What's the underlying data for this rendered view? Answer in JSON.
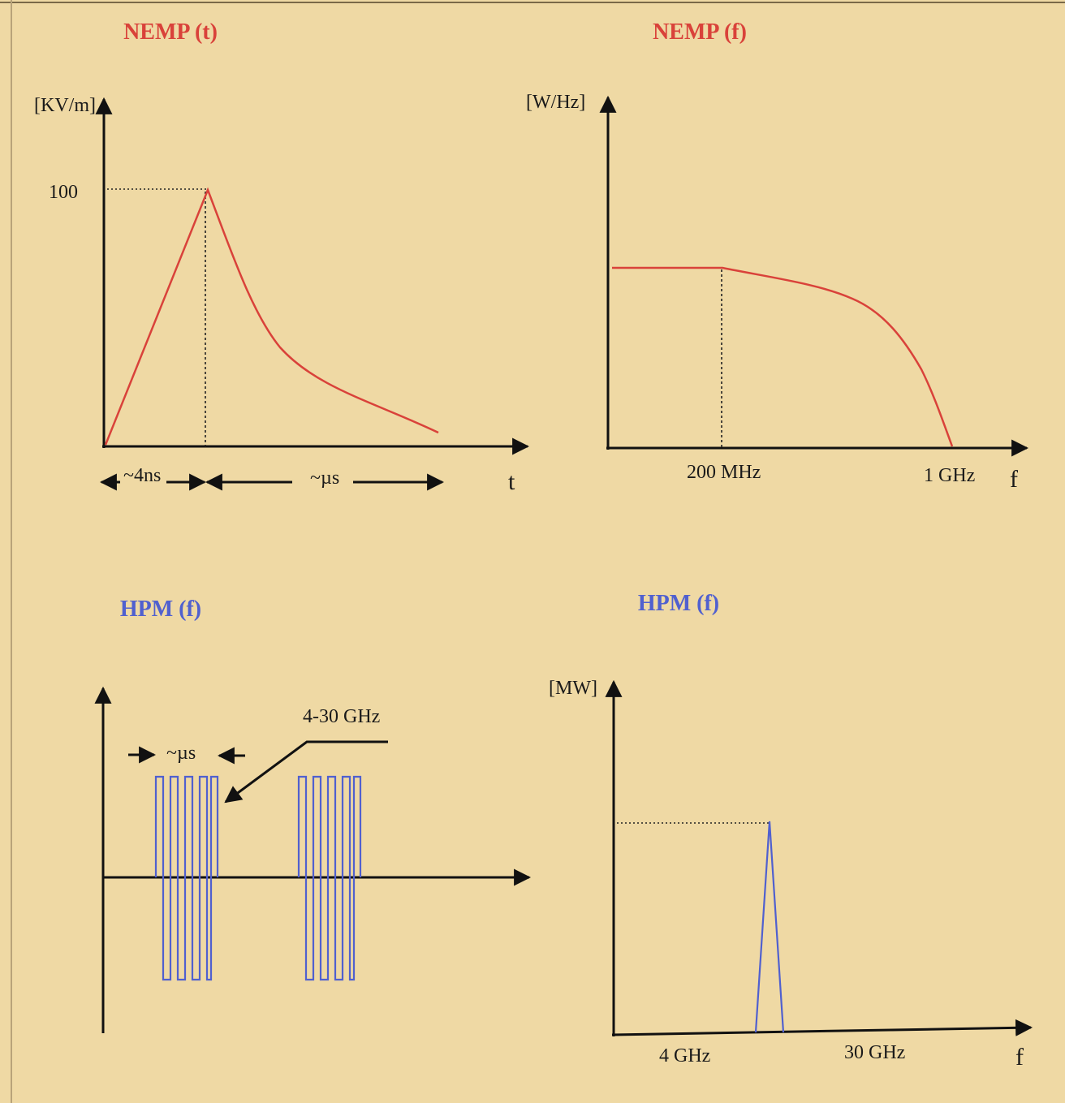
{
  "colors": {
    "background": "#efd9a4",
    "nemp": "#d9423a",
    "hpm": "#5060cf",
    "ink": "#111111"
  },
  "panels": {
    "nemp_t": {
      "title": "NEMP (t)",
      "y_unit": "[KV/m]",
      "y_tick": "100",
      "x_label": "t",
      "rise_label": "~4ns",
      "decay_label": "~µs"
    },
    "nemp_f": {
      "title": "NEMP (f)",
      "y_unit": "[W/Hz]",
      "x_tick_1": "200 MHz",
      "x_tick_2": "1 GHz",
      "x_label": "f"
    },
    "hpm_t": {
      "title": "HPM (f)",
      "pulse_width_label": "~µs",
      "frequency_label": "4-30 GHz"
    },
    "hpm_f": {
      "title": "HPM (f)",
      "y_unit": "[MW]",
      "x_tick_1": "4 GHz",
      "x_tick_2": "30 GHz",
      "x_label": "f"
    }
  }
}
